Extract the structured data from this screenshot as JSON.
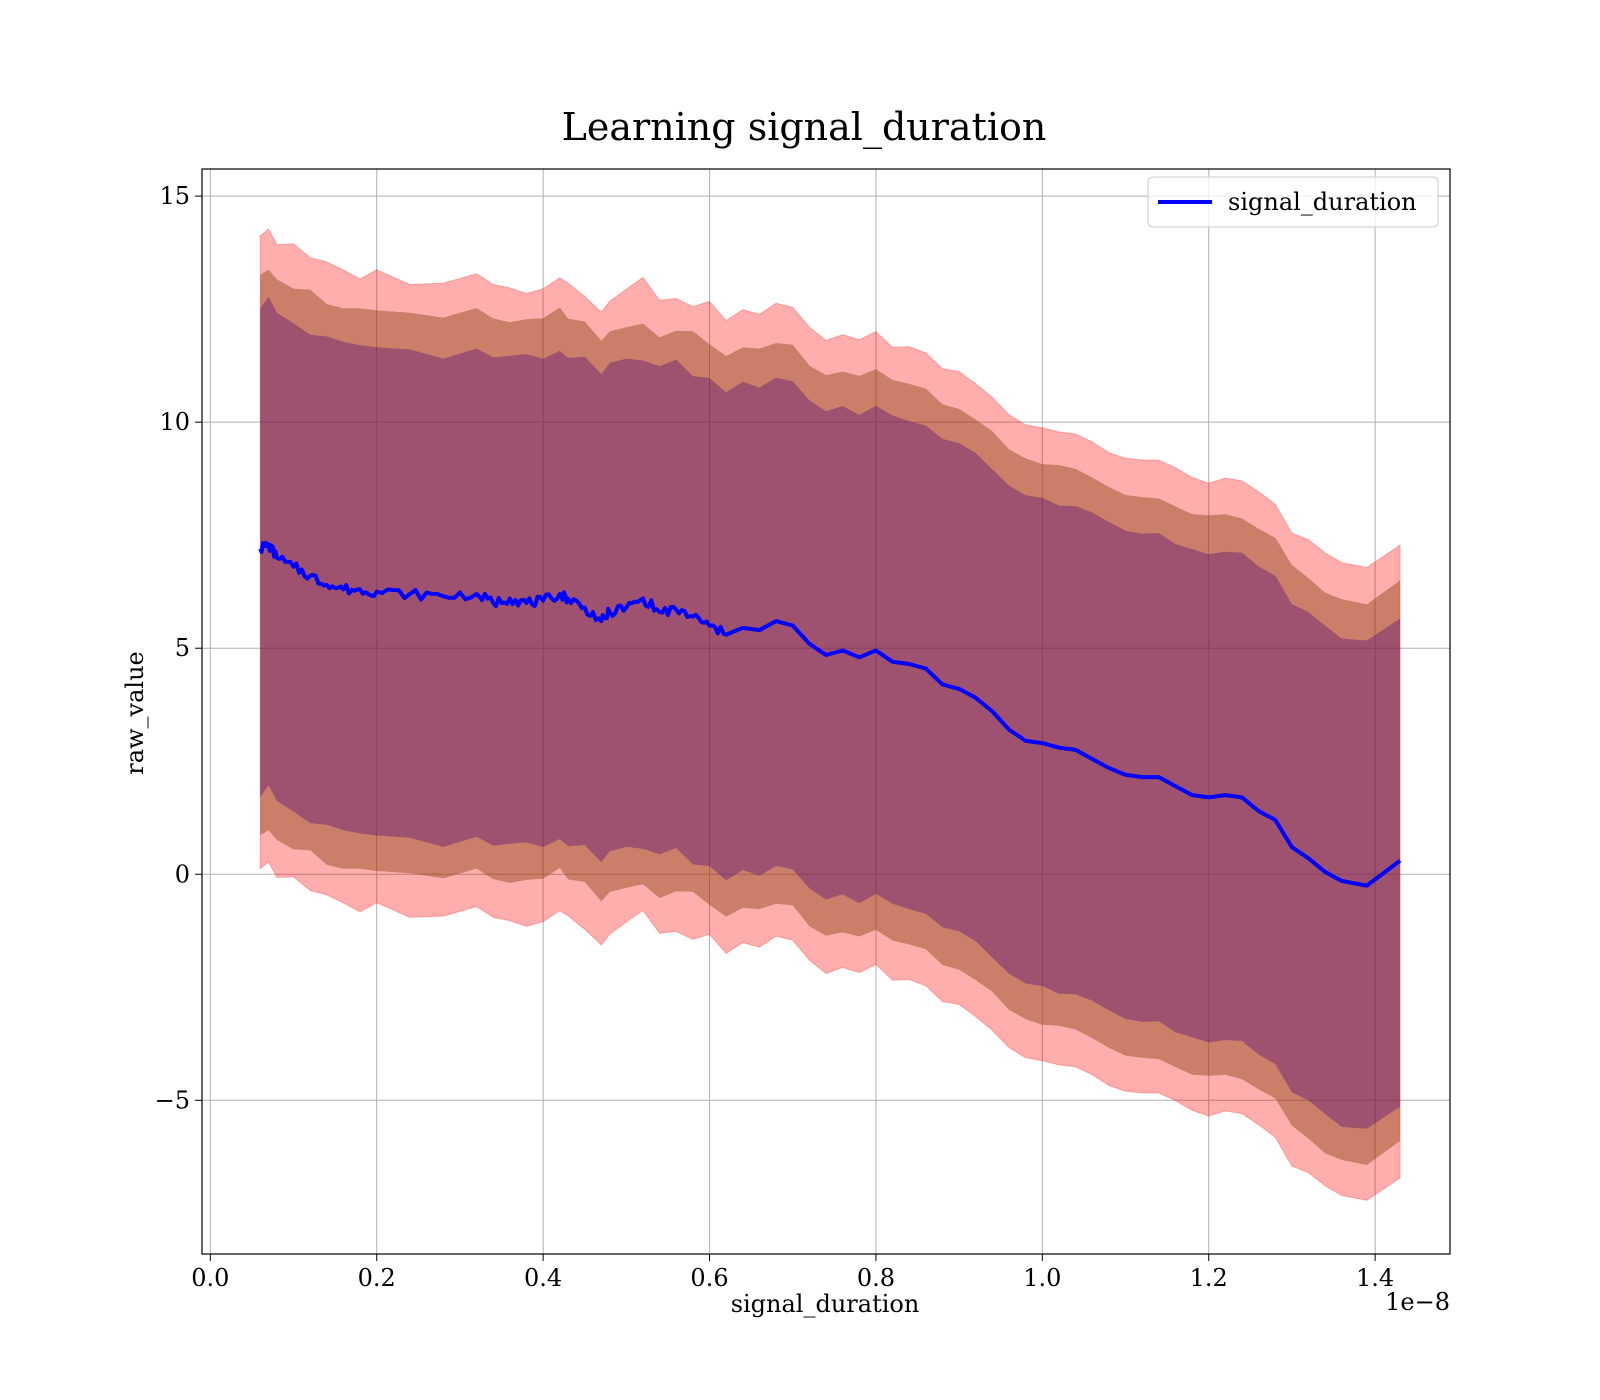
{
  "chart_data": {
    "type": "line",
    "title": "Learning signal_duration",
    "xlabel": "signal_duration",
    "ylabel": "raw_value",
    "x_offset_text": "1e−8",
    "x_scale": 1e-08,
    "xlim": [
      -1e-10,
      1.49e-08
    ],
    "ylim": [
      -8.4,
      15.6
    ],
    "grid": true,
    "legend_position": "top-right",
    "x_ticks": [
      0.0,
      2e-09,
      4e-09,
      6e-09,
      8e-09,
      1e-08,
      1.2e-08,
      1.4e-08
    ],
    "x_tick_labels": [
      "0.0",
      "0.2",
      "0.4",
      "0.6",
      "0.8",
      "1.0",
      "1.2",
      "1.4"
    ],
    "y_ticks": [
      -5,
      0,
      5,
      10,
      15
    ],
    "y_tick_labels": [
      "−5",
      "0",
      "5",
      "10",
      "15"
    ],
    "colors": {
      "line": "#0000ff",
      "band_outer": "#ff0000",
      "band_middle": "#8b4513",
      "band_inner": "#4b0082"
    },
    "series": [
      {
        "name": "signal_duration",
        "x": [
          6e-10,
          7e-10,
          8e-10,
          1e-09,
          1.2e-09,
          1.4e-09,
          1.6e-09,
          1.8e-09,
          2e-09,
          2.4e-09,
          2.8e-09,
          3.2e-09,
          3.4e-09,
          3.6e-09,
          3.8e-09,
          4e-09,
          4.2e-09,
          4.3e-09,
          4.5e-09,
          4.7e-09,
          4.8e-09,
          5e-09,
          5.2e-09,
          5.4e-09,
          5.6e-09,
          5.8e-09,
          6e-09,
          6.2e-09,
          6.4e-09,
          6.6e-09,
          6.8e-09,
          7e-09,
          7.2e-09,
          7.4e-09,
          7.6e-09,
          7.8e-09,
          8e-09,
          8.2e-09,
          8.4e-09,
          8.6e-09,
          8.8e-09,
          9e-09,
          9.2e-09,
          9.4e-09,
          9.6e-09,
          9.8e-09,
          1e-08,
          1.02e-08,
          1.04e-08,
          1.06e-08,
          1.08e-08,
          1.1e-08,
          1.12e-08,
          1.14e-08,
          1.16e-08,
          1.18e-08,
          1.2e-08,
          1.22e-08,
          1.24e-08,
          1.26e-08,
          1.28e-08,
          1.3e-08,
          1.32e-08,
          1.34e-08,
          1.36e-08,
          1.39e-08,
          1.43e-08
        ],
        "values": [
          7.2,
          7.3,
          7.0,
          6.8,
          6.6,
          6.4,
          6.3,
          6.3,
          6.25,
          6.2,
          6.15,
          6.2,
          6.0,
          6.1,
          6.0,
          6.05,
          6.2,
          6.1,
          5.9,
          5.6,
          5.8,
          5.9,
          6.1,
          5.8,
          5.85,
          5.7,
          5.5,
          5.3,
          5.45,
          5.4,
          5.6,
          5.5,
          5.1,
          4.85,
          4.95,
          4.8,
          4.95,
          4.7,
          4.65,
          4.55,
          4.2,
          4.1,
          3.9,
          3.6,
          3.2,
          2.95,
          2.9,
          2.8,
          2.75,
          2.55,
          2.35,
          2.2,
          2.15,
          2.15,
          1.95,
          1.75,
          1.7,
          1.75,
          1.7,
          1.4,
          1.2,
          0.6,
          0.35,
          0.05,
          -0.15,
          -0.25,
          0.3
        ],
        "band_1_half_width": 5.4,
        "band_2_half_width": 6.2,
        "band_3_half_width": 7.0
      }
    ]
  }
}
